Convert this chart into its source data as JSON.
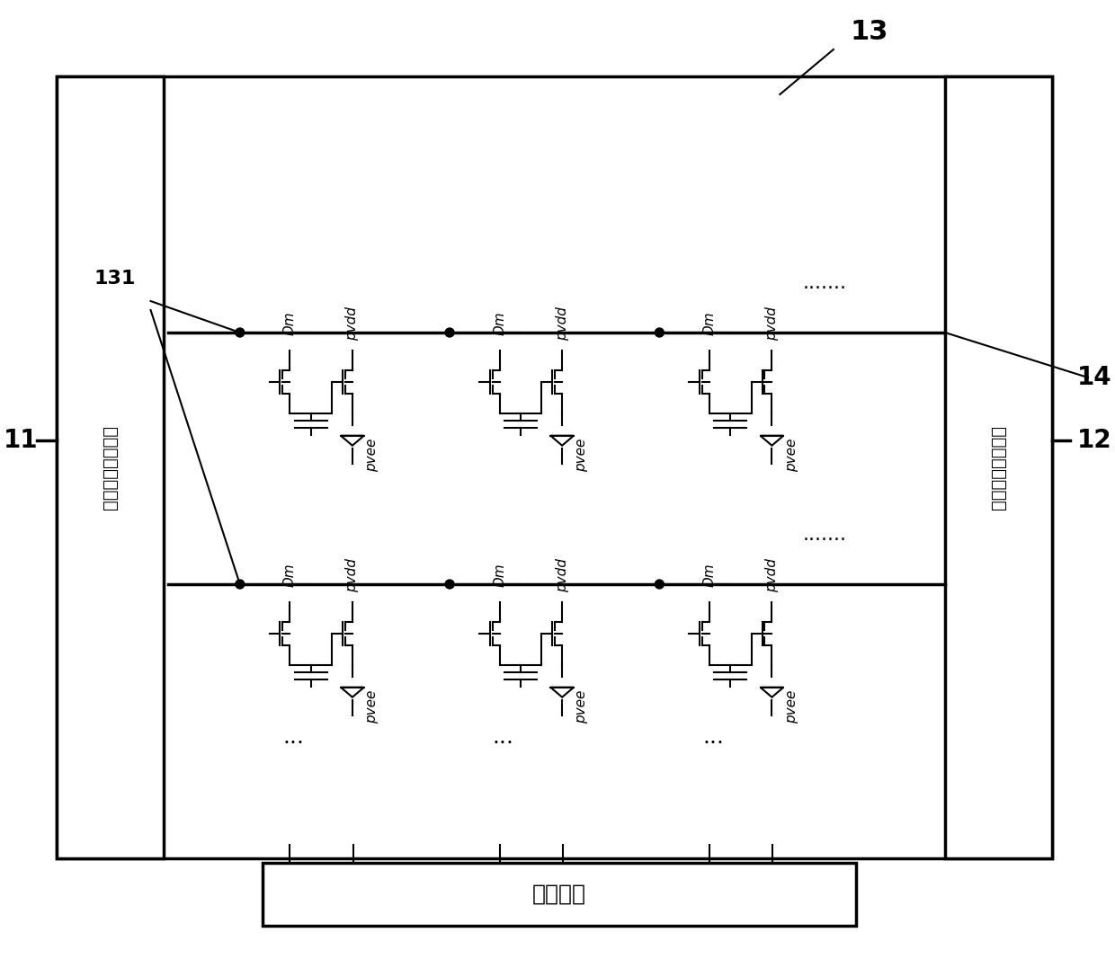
{
  "bg_color": "#ffffff",
  "line_color": "#000000",
  "fig_width": 12.4,
  "fig_height": 10.67,
  "dpi": 100,
  "label_11": "11",
  "label_12": "12",
  "label_13": "13",
  "label_14": "14",
  "label_131": "131",
  "label_left": "第一扫描驱动电路",
  "label_right": "第二驱动扫描电路",
  "label_ic": "集成电路",
  "label_pvdd": "pvdd",
  "label_pvee": "pvee",
  "label_Dm": "Dm",
  "label_dots_h": ".......",
  "label_dots_v": "......",
  "label_dots3": "..."
}
